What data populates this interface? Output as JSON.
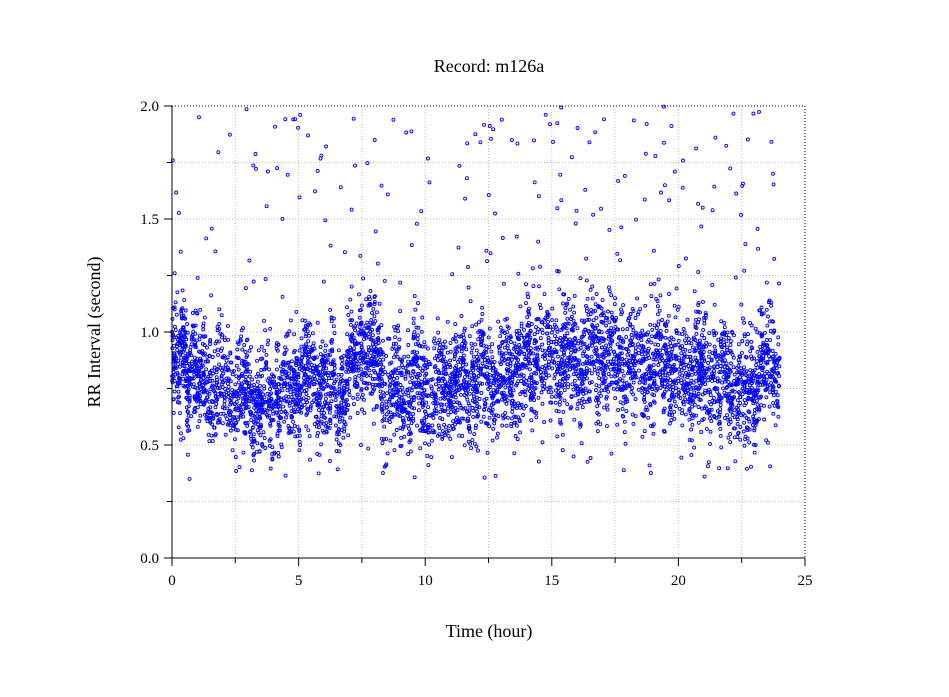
{
  "chart_data": {
    "type": "scatter",
    "title": "Record:  m126a",
    "xlabel": "Time (hour)",
    "ylabel": "RR Interval (second)",
    "xlim": [
      0,
      25
    ],
    "ylim": [
      0.0,
      2.0
    ],
    "xticks": [
      0,
      5,
      10,
      15,
      20,
      25
    ],
    "xtick_labels": [
      "0",
      "5",
      "10",
      "15",
      "20",
      "25"
    ],
    "yticks": [
      0.0,
      0.5,
      1.0,
      1.5,
      2.0
    ],
    "ytick_labels": [
      "0.0",
      "0.5",
      "1.0",
      "1.5",
      "2.0"
    ],
    "grid": true,
    "series": [
      {
        "marker": "open-circle",
        "color": "#0000ff",
        "baseline_trend": [
          [
            0.0,
            0.85
          ],
          [
            0.5,
            0.9
          ],
          [
            1.0,
            0.82
          ],
          [
            1.5,
            0.78
          ],
          [
            2.0,
            0.75
          ],
          [
            2.5,
            0.74
          ],
          [
            3.0,
            0.72
          ],
          [
            3.5,
            0.68
          ],
          [
            4.0,
            0.7
          ],
          [
            4.5,
            0.75
          ],
          [
            5.0,
            0.8
          ],
          [
            5.5,
            0.82
          ],
          [
            6.0,
            0.76
          ],
          [
            6.5,
            0.74
          ],
          [
            7.0,
            0.8
          ],
          [
            7.5,
            0.95
          ],
          [
            8.0,
            0.88
          ],
          [
            8.5,
            0.72
          ],
          [
            9.0,
            0.74
          ],
          [
            9.5,
            0.76
          ],
          [
            10.0,
            0.74
          ],
          [
            10.5,
            0.73
          ],
          [
            11.0,
            0.76
          ],
          [
            11.5,
            0.78
          ],
          [
            12.0,
            0.8
          ],
          [
            12.5,
            0.8
          ],
          [
            13.0,
            0.78
          ],
          [
            13.5,
            0.82
          ],
          [
            14.0,
            0.86
          ],
          [
            14.5,
            0.9
          ],
          [
            15.0,
            0.88
          ],
          [
            15.5,
            0.88
          ],
          [
            16.0,
            0.89
          ],
          [
            16.5,
            0.9
          ],
          [
            17.0,
            0.92
          ],
          [
            17.5,
            0.88
          ],
          [
            18.0,
            0.86
          ],
          [
            18.5,
            0.88
          ],
          [
            19.0,
            0.86
          ],
          [
            19.5,
            0.86
          ],
          [
            20.0,
            0.83
          ],
          [
            20.5,
            0.85
          ],
          [
            21.0,
            0.84
          ],
          [
            21.5,
            0.82
          ],
          [
            22.0,
            0.8
          ],
          [
            22.5,
            0.72
          ],
          [
            23.0,
            0.78
          ],
          [
            23.5,
            0.86
          ],
          [
            24.0,
            0.88
          ]
        ],
        "spread": 0.12,
        "outlier_high_range": [
          1.1,
          2.0
        ],
        "outlier_low_range": [
          0.35,
          0.6
        ],
        "x_range": [
          0.0,
          24.0
        ]
      }
    ]
  }
}
